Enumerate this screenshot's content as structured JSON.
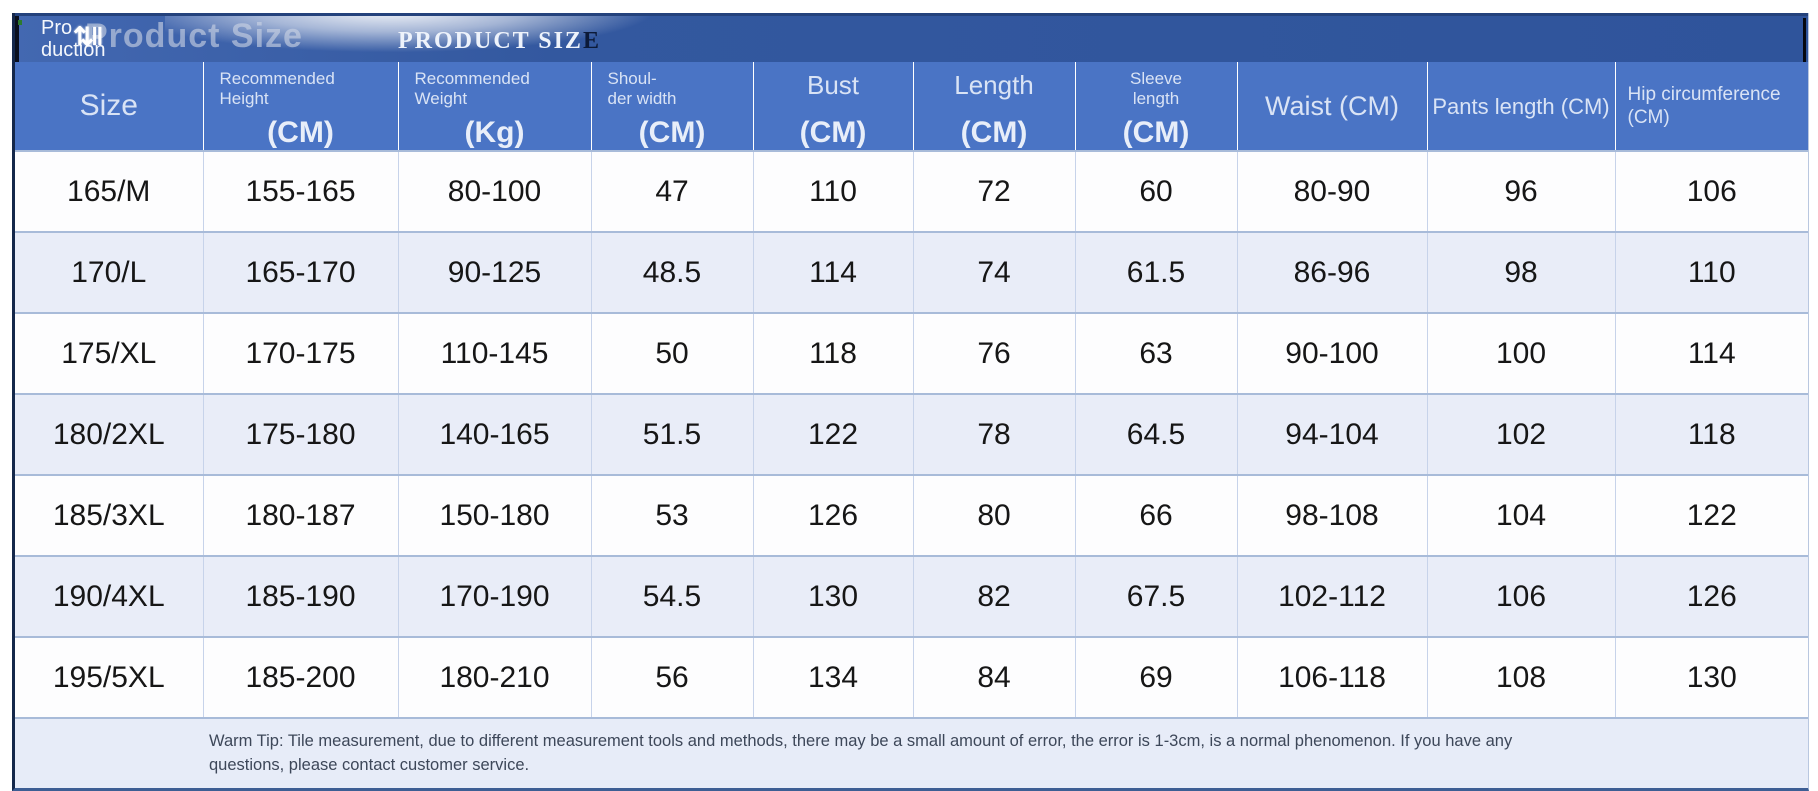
{
  "title_bar": {
    "overlay_line1": "Pro",
    "overlay_line2": "duction",
    "artifact_glyphs": "⇅‖",
    "ghost_title": "Product Size",
    "main_title": "PRODUCT SIZ",
    "main_title_last_letter": "E"
  },
  "header_cells": [
    {
      "label_lines": [
        "Size"
      ],
      "unit": ""
    },
    {
      "label_lines": [
        "Recommended",
        "Height"
      ],
      "unit": "(CM)"
    },
    {
      "label_lines": [
        "Recommended",
        "Weight"
      ],
      "unit": "(Kg)"
    },
    {
      "label_lines": [
        "Shoul-",
        "der width"
      ],
      "unit": "(CM)"
    },
    {
      "label_lines": [
        "Bust"
      ],
      "unit": "(CM)"
    },
    {
      "label_lines": [
        "Length"
      ],
      "unit": "(CM)"
    },
    {
      "label_lines": [
        "Sleeve",
        "length"
      ],
      "unit": "(CM)"
    },
    {
      "label_lines": [
        "Waist (CM)"
      ],
      "unit": ""
    },
    {
      "label_lines": [
        "Pants length (CM)"
      ],
      "unit": ""
    },
    {
      "label_lines": [
        "Hip circumference",
        "(CM)"
      ],
      "unit": ""
    }
  ],
  "chart_data": {
    "type": "table",
    "title": "PRODUCT SIZE",
    "columns": [
      "Size",
      "Recommended Height (CM)",
      "Recommended Weight (Kg)",
      "Shoulder width (CM)",
      "Bust (CM)",
      "Length (CM)",
      "Sleeve length (CM)",
      "Waist (CM)",
      "Pants length (CM)",
      "Hip circumference (CM)"
    ],
    "rows": [
      [
        "165/M",
        "155-165",
        "80-100",
        "47",
        "110",
        "72",
        "60",
        "80-90",
        "96",
        "106"
      ],
      [
        "170/L",
        "165-170",
        "90-125",
        "48.5",
        "114",
        "74",
        "61.5",
        "86-96",
        "98",
        "110"
      ],
      [
        "175/XL",
        "170-175",
        "110-145",
        "50",
        "118",
        "76",
        "63",
        "90-100",
        "100",
        "114"
      ],
      [
        "180/2XL",
        "175-180",
        "140-165",
        "51.5",
        "122",
        "78",
        "64.5",
        "94-104",
        "102",
        "118"
      ],
      [
        "185/3XL",
        "180-187",
        "150-180",
        "53",
        "126",
        "80",
        "66",
        "98-108",
        "104",
        "122"
      ],
      [
        "190/4XL",
        "185-190",
        "170-190",
        "54.5",
        "130",
        "82",
        "67.5",
        "102-112",
        "106",
        "126"
      ],
      [
        "195/5XL",
        "185-200",
        "180-210",
        "56",
        "134",
        "84",
        "69",
        "106-118",
        "108",
        "130"
      ]
    ]
  },
  "footer": {
    "warm_tip": "Warm Tip: Tile measurement, due to different measurement tools and methods, there may be a small amount of error, the error is 1-3cm, is a normal phenomenon. If you have any questions, please contact customer service."
  },
  "colors": {
    "title_band": "#33589f",
    "header_band": "#4a74c5",
    "row_white": "#fdfdfe",
    "row_alt": "#e9edf8",
    "footer_bg": "#e7ecf8",
    "grid_line": "#a8bbd9",
    "dark_letter": "#0c1a38"
  }
}
